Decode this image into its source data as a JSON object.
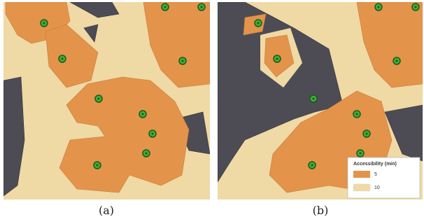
{
  "panels": [
    {
      "caption": "(a)"
    },
    {
      "caption": "(b)"
    }
  ],
  "legend": {
    "title": "Accessibility (min)",
    "items": [
      {
        "label": "5"
      },
      {
        "label": "10"
      }
    ]
  }
}
